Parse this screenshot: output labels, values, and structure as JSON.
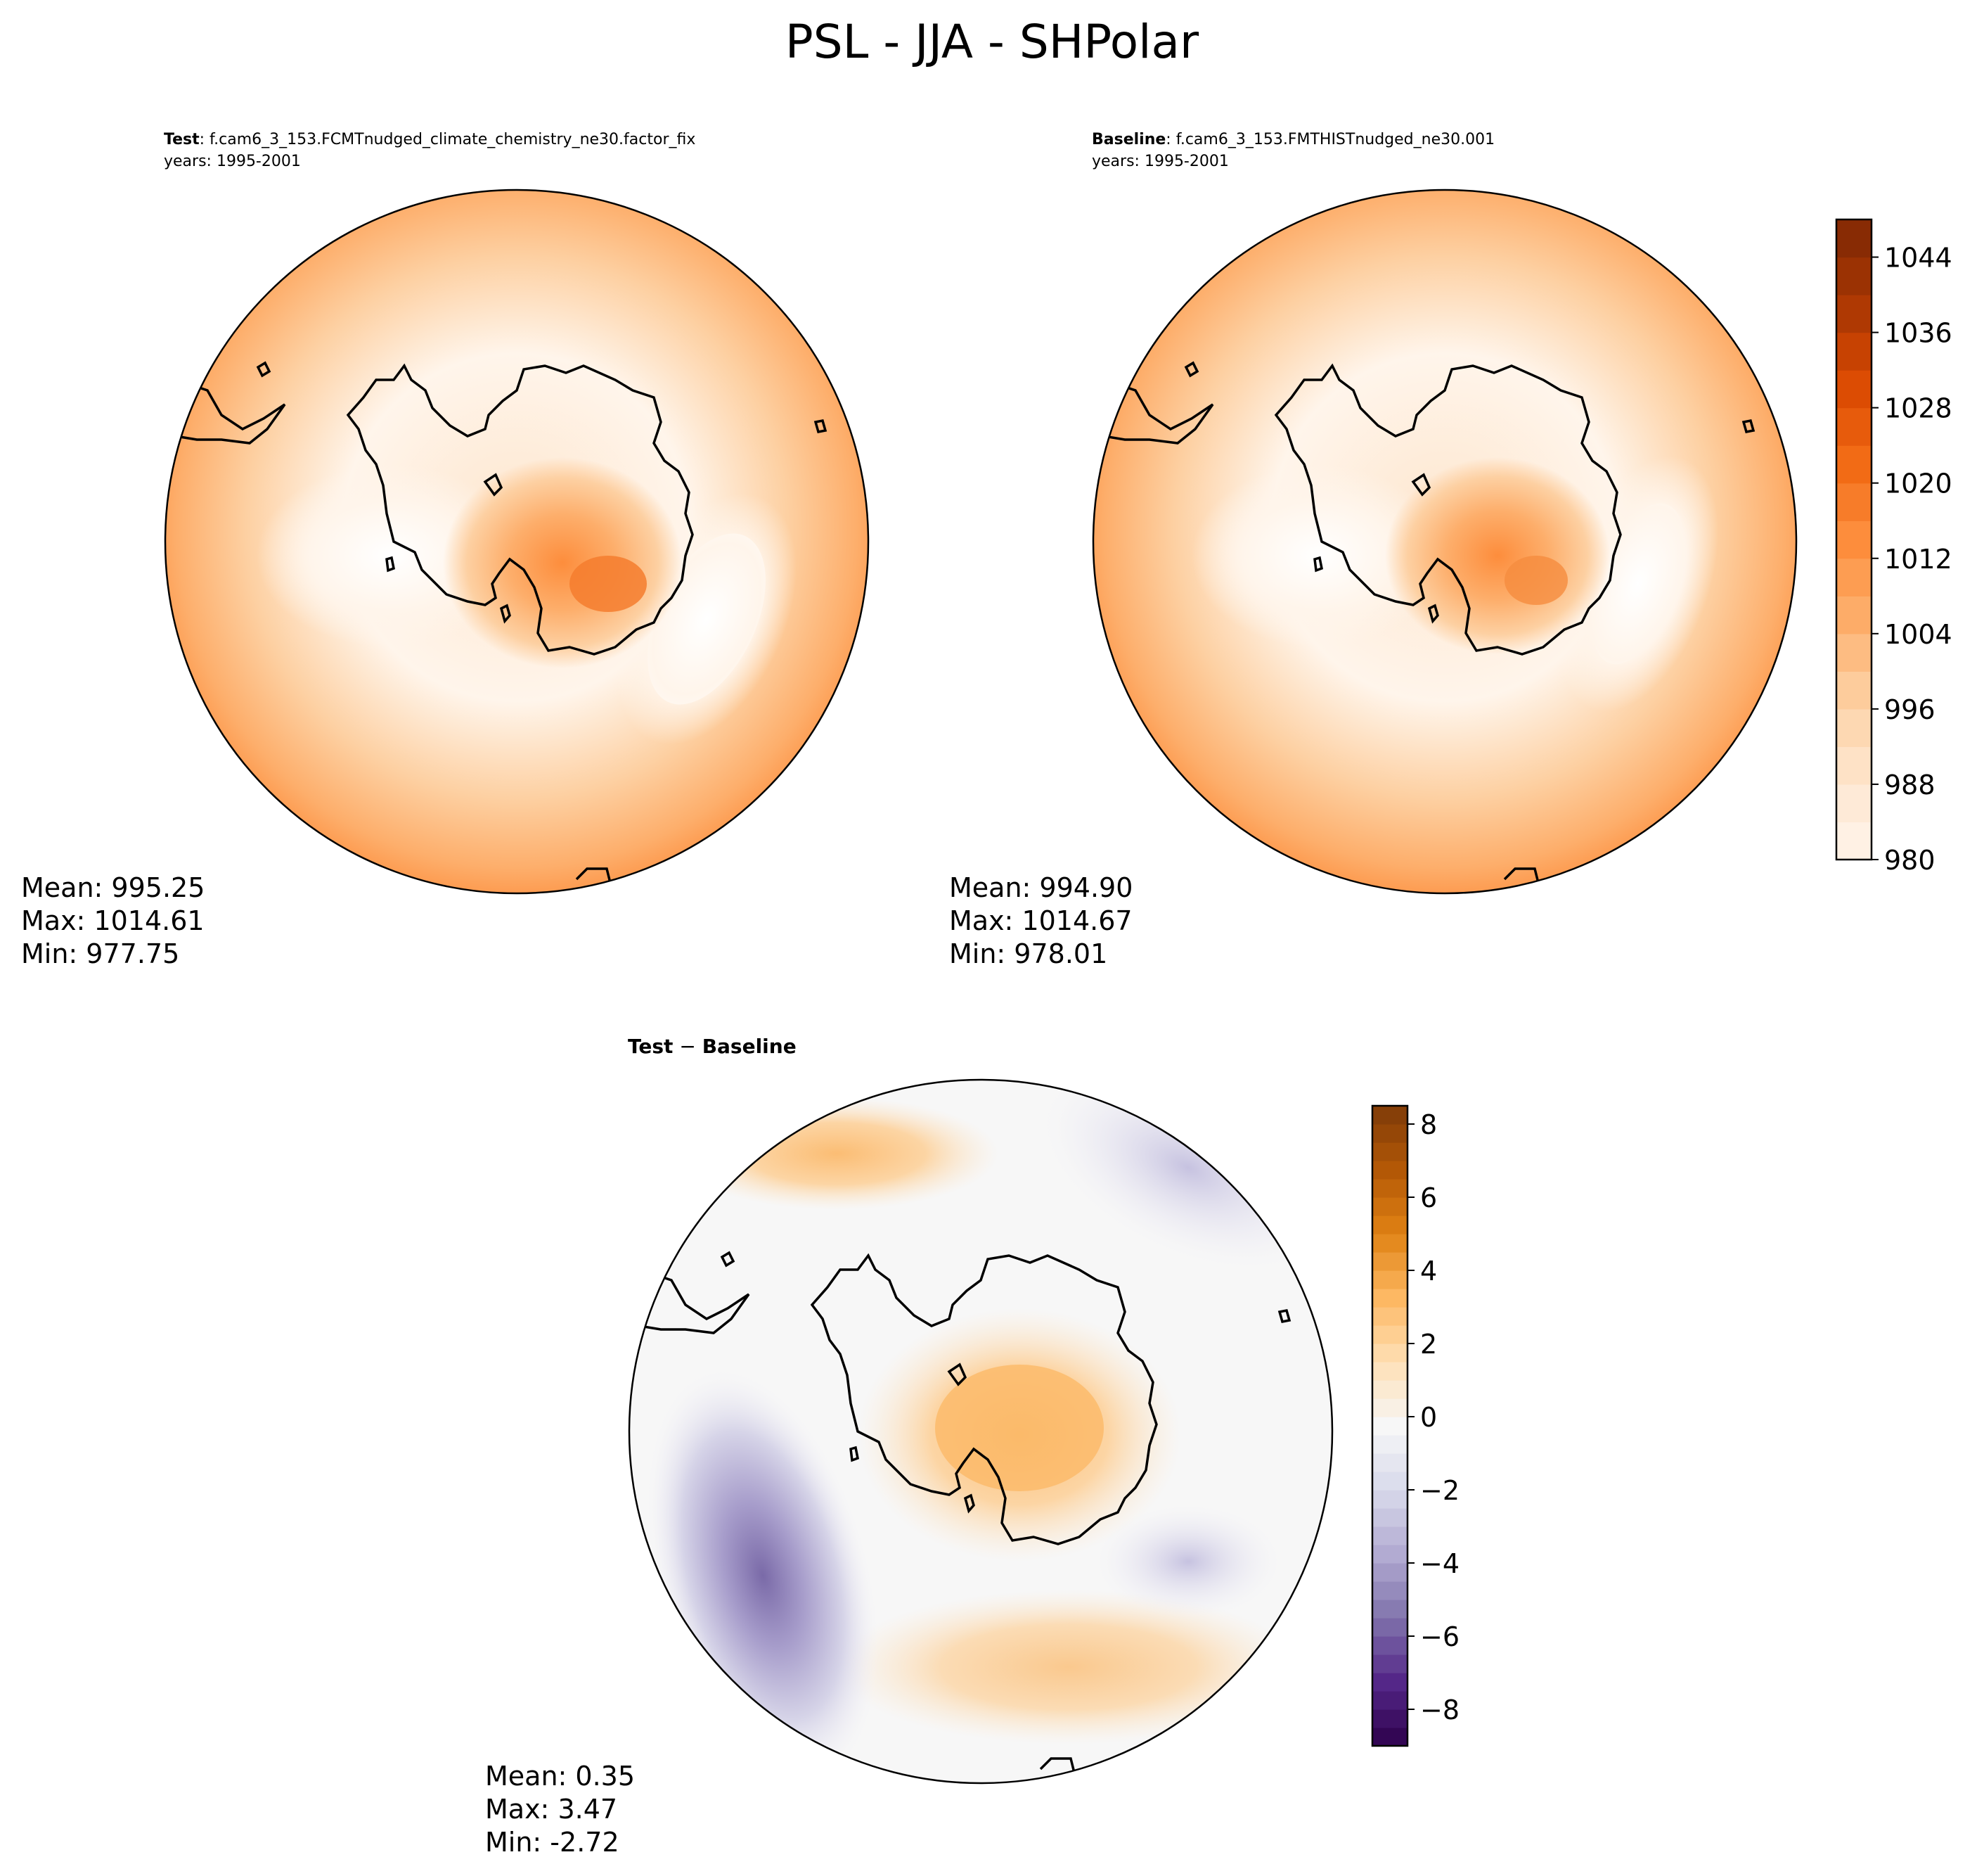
{
  "chart_data": [
    {
      "type": "contour-map",
      "role": "test",
      "panel_label": "Test",
      "case_name": ": f.cam6_3_153.FCMTnudged_climate_chemistry_ne30.factor_fix",
      "years_line": "years: 1995-2001",
      "stats": {
        "mean": "Mean: 995.25",
        "max": "Max: 1014.61",
        "min": "Min: 977.75"
      },
      "colormap": "Oranges"
    },
    {
      "type": "contour-map",
      "role": "baseline",
      "panel_label": "Baseline",
      "case_name": ": f.cam6_3_153.FMTHISTnudged_ne30.001",
      "years_line": "years: 1995-2001",
      "stats": {
        "mean": "Mean: 994.90",
        "max": "Max: 1014.67",
        "min": "Min: 978.01"
      },
      "colormap": "Oranges",
      "colorbar": {
        "vmin": 980,
        "vmax": 1048,
        "step": 4,
        "ticks": [
          980,
          988,
          996,
          1004,
          1012,
          1020,
          1028,
          1036,
          1044
        ]
      }
    },
    {
      "type": "contour-map",
      "role": "difference",
      "title_left": "Test",
      "title_op": " − ",
      "title_right": "Baseline",
      "stats": {
        "mean": "Mean:  0.35",
        "max": "Max:  3.47",
        "min": "Min: -2.72"
      },
      "colormap": "PuOr_r",
      "colorbar": {
        "vmin": -9,
        "vmax": 8.5,
        "step": 0.5,
        "ticks": [
          -8,
          -6,
          -4,
          -2,
          0,
          2,
          4,
          6,
          8
        ]
      }
    }
  ],
  "figure": {
    "title": "PSL - JJA - SHPolar"
  },
  "colors": {
    "oranges": [
      "#fff5eb",
      "#fee6ce",
      "#fdd0a2",
      "#fdae6b",
      "#fd8d3c",
      "#f16913",
      "#d94801",
      "#a63603",
      "#7f2704"
    ],
    "diverging": [
      "#2d004b",
      "#542788",
      "#8073ac",
      "#b2abd2",
      "#d8daeb",
      "#f7f7f7",
      "#fee0b6",
      "#fdb863",
      "#e08214",
      "#b35806",
      "#7f3b08"
    ]
  }
}
